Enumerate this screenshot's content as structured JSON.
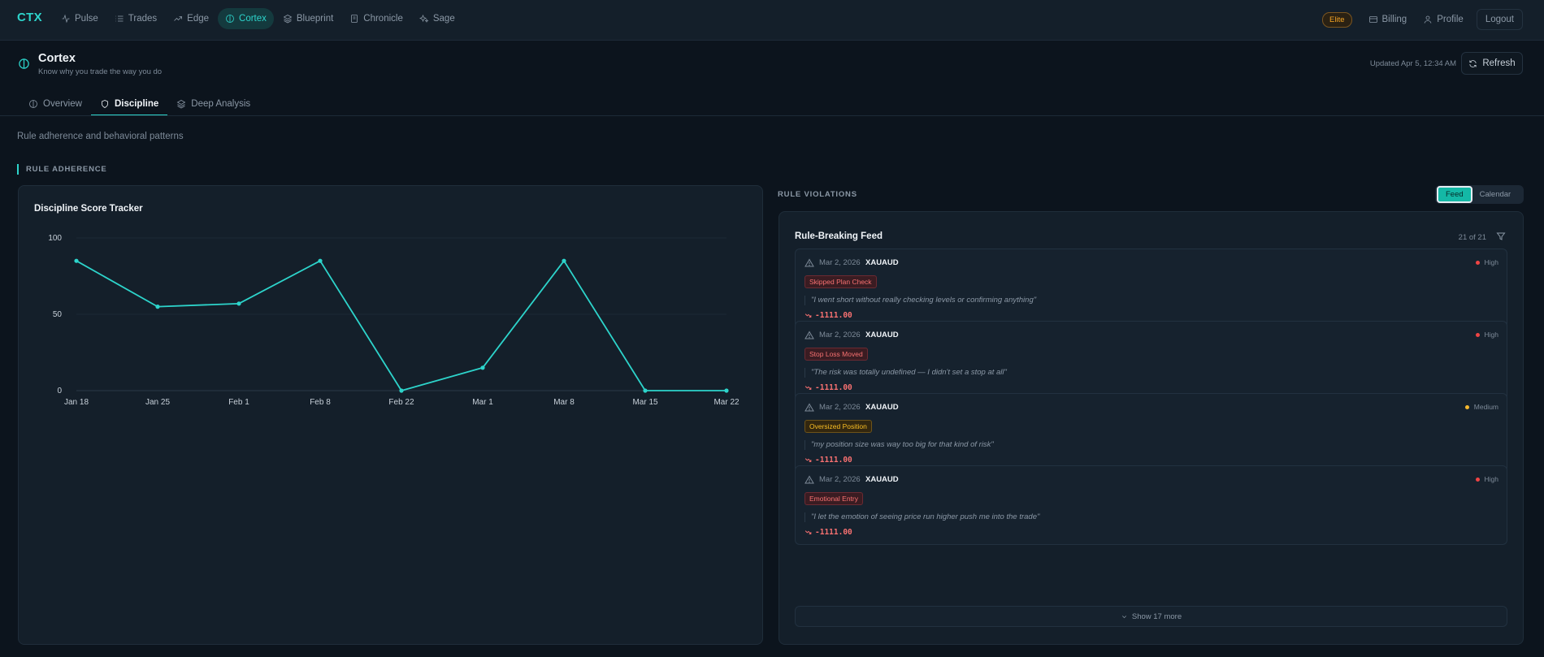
{
  "nav": {
    "brand": "CTX",
    "links": [
      {
        "label": "Pulse",
        "icon": "activity-icon"
      },
      {
        "label": "Trades",
        "icon": "list-icon"
      },
      {
        "label": "Edge",
        "icon": "trending-up-icon"
      },
      {
        "label": "Cortex",
        "icon": "brain-icon"
      },
      {
        "label": "Blueprint",
        "icon": "layers-icon"
      },
      {
        "label": "Chronicle",
        "icon": "book-icon"
      },
      {
        "label": "Sage",
        "icon": "sparkles-icon"
      }
    ],
    "active": "Cortex",
    "plan_badge": "Elite",
    "billing": "Billing",
    "profile": "Profile",
    "logout": "Logout"
  },
  "header": {
    "title": "Cortex",
    "subtitle": "Know why you trade the way you do",
    "updated": "Updated Apr 5, 12:34 AM",
    "refresh": "Refresh"
  },
  "tabs": [
    {
      "label": "Overview",
      "icon": "brain-icon"
    },
    {
      "label": "Discipline",
      "icon": "shield-icon"
    },
    {
      "label": "Deep Analysis",
      "icon": "layers-icon"
    }
  ],
  "active_tab": "Discipline",
  "description": "Rule adherence and behavioral patterns",
  "sections": {
    "adherence": "RULE ADHERENCE",
    "violations": "RULE VIOLATIONS"
  },
  "chart_panel": {
    "title": "Discipline Score Tracker"
  },
  "chart_data": {
    "type": "line",
    "title": "Discipline Score Tracker",
    "categories": [
      "Jan 18",
      "Jan 25",
      "Feb 1",
      "Feb 8",
      "Feb 22",
      "Mar 1",
      "Mar 8",
      "Mar 15",
      "Mar 22"
    ],
    "series": [
      {
        "values": [
          85,
          55,
          57,
          85,
          0,
          15,
          85,
          0,
          0
        ]
      }
    ],
    "yticks": [
      0,
      50,
      100
    ],
    "ylim": [
      0,
      100
    ],
    "line_color": "#2dd4cb",
    "grid": true
  },
  "feed": {
    "toggle": {
      "feed": "Feed",
      "calendar": "Calendar"
    },
    "title": "Rule-Breaking Feed",
    "count": "21 of 21",
    "items": [
      {
        "date": "Mar 2, 2026",
        "symbol": "XAUAUD",
        "severity": "High",
        "severity_color": "#ef4444",
        "tag": "Skipped Plan Check",
        "tag_style": "red",
        "quote": "\"I went short without really checking levels or confirming anything\"",
        "pl": "-1111.00"
      },
      {
        "date": "Mar 2, 2026",
        "symbol": "XAUAUD",
        "severity": "High",
        "severity_color": "#ef4444",
        "tag": "Stop Loss Moved",
        "tag_style": "red",
        "quote": "\"The risk was totally undefined — I didn't set a stop at all\"",
        "pl": "-1111.00"
      },
      {
        "date": "Mar 2, 2026",
        "symbol": "XAUAUD",
        "severity": "Medium",
        "severity_color": "#f5b82e",
        "tag": "Oversized Position",
        "tag_style": "amber",
        "quote": "\"my position size was way too big for that kind of risk\"",
        "pl": "-1111.00"
      },
      {
        "date": "Mar 2, 2026",
        "symbol": "XAUAUD",
        "severity": "High",
        "severity_color": "#ef4444",
        "tag": "Emotional Entry",
        "tag_style": "red",
        "quote": "\"I let the emotion of seeing price run higher push me into the trade\"",
        "pl": "-1111.00"
      }
    ],
    "show_more": "Show 17 more"
  },
  "colors": {
    "accent": "#2dd4cb",
    "loss": "#f87171"
  }
}
